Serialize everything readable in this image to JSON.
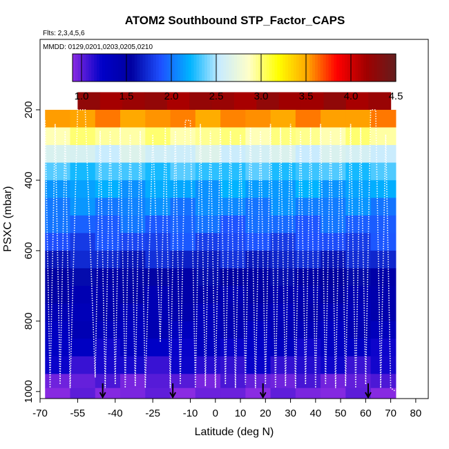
{
  "chart_data": {
    "type": "heatmap",
    "title": "ATOM2 Southbound STP_Factor_CAPS",
    "subtitle_flights": "Flts: 2,3,4,5,6",
    "subtitle_dates": "MMDD: 0129,0201,0203,0205,0210",
    "xlabel": "Latitude (deg N)",
    "ylabel": "PSXC (mbar)",
    "xlim": [
      -70,
      85
    ],
    "ylim": [
      1020,
      0
    ],
    "x_ticks": [
      -70,
      -55,
      -40,
      -25,
      -10,
      0,
      10,
      20,
      30,
      40,
      50,
      60,
      70,
      80
    ],
    "x_tick_labels": [
      "-70",
      "-55",
      "-40",
      "-25",
      "-10",
      "0",
      "10",
      "20",
      "30",
      "40",
      "50",
      "60",
      "70",
      "80"
    ],
    "y_ticks": [
      200,
      400,
      600,
      800,
      1000
    ],
    "y_tick_labels": [
      "200",
      "400",
      "600",
      "800",
      "1000"
    ],
    "colorbar": {
      "min": 0.9,
      "max": 4.5,
      "ticks": [
        1.0,
        1.5,
        2.0,
        2.5,
        3.0,
        3.5,
        4.0,
        4.5
      ],
      "tick_labels": [
        "1.0",
        "1.5",
        "2.0",
        "2.5",
        "3.0",
        "3.5",
        "4.0",
        "4.5"
      ],
      "colors": [
        "#8a2be2",
        "#0000c8",
        "#0000a0",
        "#1e50ff",
        "#00b4ff",
        "#c8ebff",
        "#ffffc8",
        "#ffff00",
        "#ffa500",
        "#ff0000",
        "#a00000",
        "#641e1e"
      ]
    },
    "data_extent_x": [
      -68,
      72
    ],
    "pressure_levels": [
      175,
      225,
      275,
      325,
      375,
      425,
      475,
      525,
      575,
      625,
      675,
      725,
      775,
      825,
      875,
      925,
      975,
      1005
    ],
    "level_values": [
      4.2,
      3.55,
      2.95,
      2.6,
      2.3,
      2.15,
      2.05,
      1.95,
      1.85,
      1.7,
      1.55,
      1.45,
      1.4,
      1.35,
      1.25,
      1.15,
      1.0,
      0.95
    ],
    "level_x_start": [
      -55,
      -68,
      -68,
      -68,
      -68,
      -68,
      -68,
      -68,
      -68,
      -68,
      -68,
      -68,
      -68,
      -68,
      -68,
      -68,
      -68,
      -68
    ],
    "level_x_end": [
      70,
      72,
      72,
      72,
      72,
      72,
      72,
      72,
      72,
      72,
      72,
      72,
      72,
      72,
      72,
      72,
      72,
      72
    ],
    "flight_track": {
      "lat": [
        -68,
        -66,
        -64,
        -62,
        -60,
        -58,
        -55,
        -54,
        -52,
        -48,
        -46,
        -44,
        -42,
        -40,
        -38,
        -36,
        -34,
        -32,
        -30,
        -28,
        -25,
        -22,
        -20,
        -18,
        -16,
        -14,
        -12,
        -10,
        -8,
        -6,
        -4,
        -2,
        0,
        2,
        4,
        6,
        8,
        10,
        12,
        14,
        16,
        18,
        20,
        22,
        24,
        26,
        28,
        30,
        32,
        34,
        36,
        38,
        40,
        42,
        44,
        46,
        48,
        50,
        52,
        54,
        56,
        58,
        60,
        62,
        64,
        66,
        68,
        70,
        72
      ],
      "psxc": [
        230,
        990,
        240,
        980,
        260,
        990,
        200,
        200,
        200,
        960,
        260,
        990,
        260,
        980,
        250,
        990,
        270,
        985,
        260,
        990,
        270,
        860,
        250,
        990,
        260,
        980,
        230,
        230,
        990,
        240,
        985,
        260,
        990,
        250,
        980,
        260,
        990,
        270,
        980,
        250,
        990,
        260,
        980,
        240,
        990,
        250,
        985,
        240,
        990,
        260,
        980,
        250,
        990,
        240,
        980,
        260,
        990,
        250,
        985,
        240,
        990,
        250,
        980,
        200,
        200,
        990,
        270,
        990,
        1000
      ]
    },
    "descent_arrows_lat": [
      -45,
      -17,
      19,
      61
    ]
  }
}
